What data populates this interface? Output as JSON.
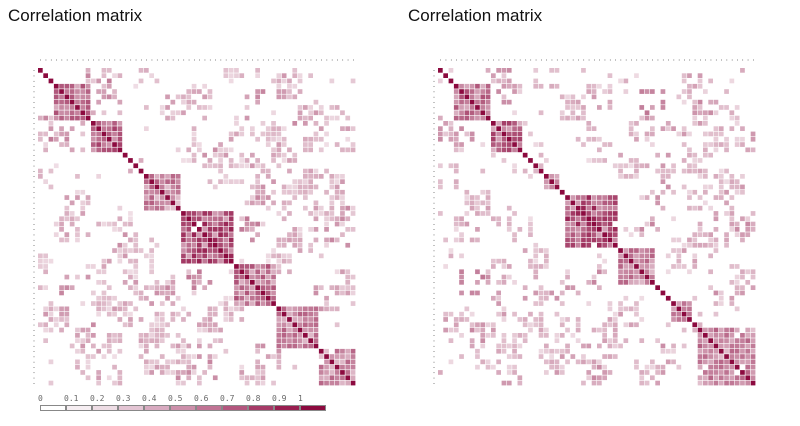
{
  "chart_data": [
    {
      "type": "heatmap",
      "title": "Correlation matrix",
      "size": 60,
      "blocks": [
        [
          3,
          9,
          0.55
        ],
        [
          10,
          15,
          0.6
        ],
        [
          20,
          26,
          0.5
        ],
        [
          27,
          36,
          0.7
        ],
        [
          37,
          44,
          0.55
        ],
        [
          45,
          52,
          0.5
        ],
        [
          53,
          59,
          0.5
        ]
      ],
      "pairs": [
        [
          2,
          11,
          0.4
        ],
        [
          4,
          13,
          0.35
        ],
        [
          5,
          30,
          0.3
        ],
        [
          6,
          40,
          0.4
        ],
        [
          1,
          20,
          0.25
        ],
        [
          3,
          47,
          0.3
        ],
        [
          8,
          50,
          0.35
        ],
        [
          12,
          44,
          0.3
        ],
        [
          14,
          52,
          0.25
        ],
        [
          16,
          33,
          0.35
        ],
        [
          18,
          41,
          0.3
        ],
        [
          22,
          55,
          0.3
        ],
        [
          24,
          48,
          0.25
        ],
        [
          28,
          57,
          0.35
        ],
        [
          30,
          39,
          0.4
        ],
        [
          32,
          50,
          0.3
        ],
        [
          0,
          35,
          0.25
        ],
        [
          7,
          25,
          0.3
        ],
        [
          9,
          54,
          0.3
        ],
        [
          11,
          38,
          0.35
        ],
        [
          13,
          58,
          0.3
        ],
        [
          15,
          29,
          0.25
        ],
        [
          17,
          46,
          0.3
        ],
        [
          19,
          36,
          0.25
        ],
        [
          21,
          51,
          0.3
        ],
        [
          23,
          42,
          0.35
        ],
        [
          26,
          53,
          0.3
        ],
        [
          31,
          56,
          0.35
        ],
        [
          34,
          47,
          0.3
        ],
        [
          36,
          45,
          0.25
        ],
        [
          40,
          58,
          0.3
        ],
        [
          43,
          54,
          0.35
        ]
      ],
      "seed": 7
    },
    {
      "type": "heatmap",
      "title": "Correlation matrix",
      "size": 60,
      "blocks": [
        [
          3,
          9,
          0.55
        ],
        [
          10,
          15,
          0.6
        ],
        [
          20,
          22,
          0.5
        ],
        [
          24,
          33,
          0.7
        ],
        [
          34,
          40,
          0.5
        ],
        [
          44,
          47,
          0.45
        ],
        [
          49,
          59,
          0.5
        ]
      ],
      "pairs": [
        [
          2,
          11,
          0.4
        ],
        [
          4,
          13,
          0.35
        ],
        [
          5,
          30,
          0.3
        ],
        [
          6,
          40,
          0.4
        ],
        [
          1,
          20,
          0.25
        ],
        [
          3,
          47,
          0.3
        ],
        [
          8,
          50,
          0.35
        ],
        [
          12,
          44,
          0.3
        ],
        [
          14,
          52,
          0.25
        ],
        [
          16,
          33,
          0.35
        ],
        [
          18,
          41,
          0.3
        ],
        [
          22,
          55,
          0.3
        ],
        [
          24,
          48,
          0.25
        ],
        [
          28,
          57,
          0.35
        ],
        [
          30,
          39,
          0.4
        ],
        [
          32,
          50,
          0.3
        ],
        [
          0,
          35,
          0.25
        ],
        [
          7,
          25,
          0.3
        ],
        [
          9,
          54,
          0.3
        ],
        [
          11,
          38,
          0.35
        ],
        [
          13,
          58,
          0.3
        ],
        [
          15,
          29,
          0.25
        ],
        [
          17,
          46,
          0.3
        ],
        [
          19,
          36,
          0.25
        ],
        [
          21,
          51,
          0.3
        ],
        [
          23,
          42,
          0.35
        ],
        [
          26,
          53,
          0.3
        ],
        [
          31,
          56,
          0.35
        ],
        [
          34,
          47,
          0.3
        ],
        [
          36,
          45,
          0.25
        ],
        [
          40,
          58,
          0.3
        ],
        [
          43,
          54,
          0.35
        ]
      ],
      "seed": 13
    }
  ],
  "legend": {
    "labels": [
      "0",
      "0.1",
      "0.2",
      "0.3",
      "0.4",
      "0.5",
      "0.6",
      "0.7",
      "0.8",
      "0.9",
      "1"
    ],
    "colors": [
      "#ffffff",
      "#f6eef2",
      "#eeddE5",
      "#e3c4d3",
      "#d8aac0",
      "#cc8faa",
      "#c07394",
      "#b3567e",
      "#a63a67",
      "#991e50",
      "#8c0a3f"
    ]
  },
  "colors": {
    "high": "#8c0a3f",
    "low": "#ffffff",
    "tick": "#999999"
  }
}
